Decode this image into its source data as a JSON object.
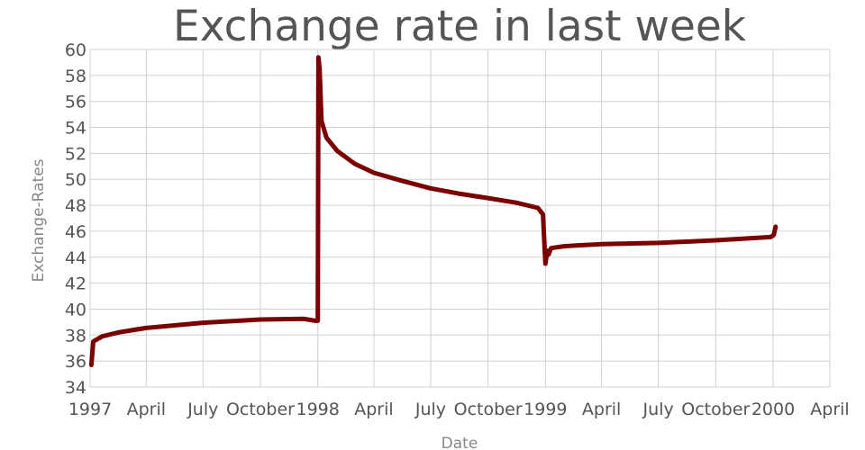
{
  "chart_data": {
    "type": "line",
    "title": "Exchange rate in last week",
    "xlabel": "Date",
    "ylabel": "Exchange-Rates",
    "x_tick_labels": [
      {
        "date": "1997-01-01",
        "label": "1997"
      },
      {
        "date": "1997-04-01",
        "label": "April"
      },
      {
        "date": "1997-07-01",
        "label": "July"
      },
      {
        "date": "1997-10-01",
        "label": "October"
      },
      {
        "date": "1998-01-01",
        "label": "1998"
      },
      {
        "date": "1998-04-01",
        "label": "April"
      },
      {
        "date": "1998-07-01",
        "label": "July"
      },
      {
        "date": "1998-10-01",
        "label": "October"
      },
      {
        "date": "1999-01-01",
        "label": "1999"
      },
      {
        "date": "1999-04-01",
        "label": "April"
      },
      {
        "date": "1999-07-01",
        "label": "July"
      },
      {
        "date": "1999-10-01",
        "label": "October"
      },
      {
        "date": "2000-01-01",
        "label": "2000"
      },
      {
        "date": "2000-04-01",
        "label": "April"
      }
    ],
    "xlim": [
      "1997-01-01",
      "2000-04-01"
    ],
    "ylim": [
      34,
      60
    ],
    "y_ticks": [
      34,
      36,
      38,
      40,
      42,
      44,
      46,
      48,
      50,
      52,
      54,
      56,
      58,
      60
    ],
    "grid": true,
    "series": [
      {
        "color": "#7b0000",
        "points": [
          [
            "1997-01-03",
            35.7
          ],
          [
            "1997-01-06",
            37.5
          ],
          [
            "1997-01-20",
            37.9
          ],
          [
            "1997-02-15",
            38.2
          ],
          [
            "1997-04-01",
            38.55
          ],
          [
            "1997-07-01",
            38.95
          ],
          [
            "1997-10-01",
            39.2
          ],
          [
            "1997-12-10",
            39.25
          ],
          [
            "1997-12-28",
            39.1
          ],
          [
            "1998-01-01",
            39.1
          ],
          [
            "1998-01-02",
            59.4
          ],
          [
            "1998-01-04",
            58.5
          ],
          [
            "1998-01-07",
            54.5
          ],
          [
            "1998-01-15",
            53.2
          ],
          [
            "1998-02-01",
            52.2
          ],
          [
            "1998-03-01",
            51.2
          ],
          [
            "1998-04-01",
            50.5
          ],
          [
            "1998-05-15",
            49.9
          ],
          [
            "1998-07-01",
            49.3
          ],
          [
            "1998-08-15",
            48.9
          ],
          [
            "1998-10-01",
            48.55
          ],
          [
            "1998-11-15",
            48.2
          ],
          [
            "1998-12-20",
            47.8
          ],
          [
            "1998-12-28",
            47.3
          ],
          [
            "1999-01-01",
            43.5
          ],
          [
            "1999-01-04",
            44.5
          ],
          [
            "1999-01-06",
            44.2
          ],
          [
            "1999-01-10",
            44.7
          ],
          [
            "1999-02-01",
            44.85
          ],
          [
            "1999-04-01",
            45.0
          ],
          [
            "1999-07-01",
            45.1
          ],
          [
            "1999-10-01",
            45.3
          ],
          [
            "1999-12-28",
            45.55
          ],
          [
            "2000-01-02",
            45.7
          ],
          [
            "2000-01-05",
            46.35
          ]
        ]
      }
    ]
  }
}
